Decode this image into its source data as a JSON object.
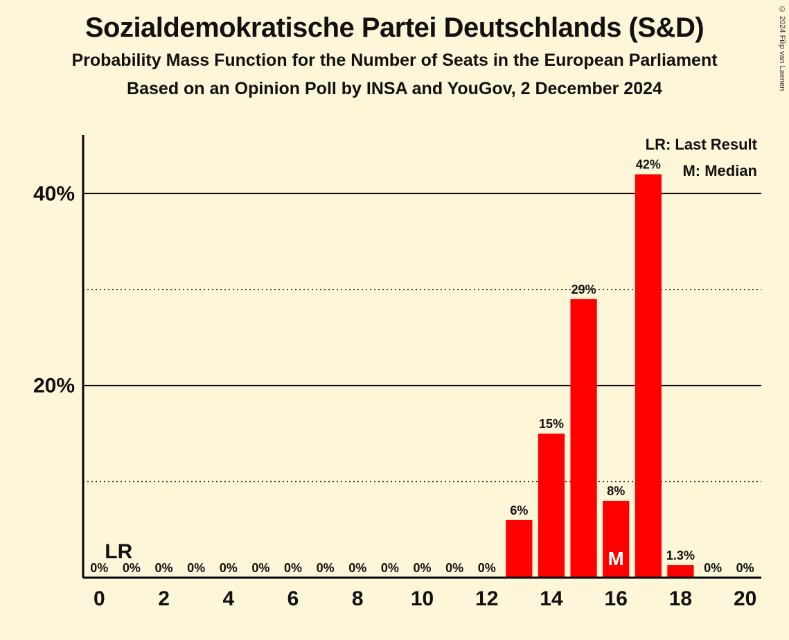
{
  "background_color": "#fdf6d8",
  "title": "Sozialdemokratische Partei Deutschlands (S&D)",
  "subtitle1": "Probability Mass Function for the Number of Seats in the European Parliament",
  "subtitle2": "Based on an Opinion Poll by INSA and YouGov, 2 December 2024",
  "copyright": "© 2024 Filip van Laenen",
  "legend": {
    "lr": "LR: Last Result",
    "m": "M: Median"
  },
  "lr_marker_label": "LR",
  "lr_seat": 0,
  "median_seat": 16,
  "median_marker_char": "M",
  "chart": {
    "type": "bar",
    "bar_color": "#ff0000",
    "axis_color": "#000000",
    "grid_color": "#000000",
    "text_color": "#111111",
    "median_text_color": "#ffffff",
    "ylim": [
      0,
      45
    ],
    "y_major_ticks": [
      20,
      40
    ],
    "y_minor_ticks": [
      10,
      30
    ],
    "y_tick_labels": {
      "20": "20%",
      "40": "40%"
    },
    "x_range": [
      0,
      20
    ],
    "x_tick_step": 2,
    "bar_width_ratio": 0.82,
    "data": [
      {
        "seat": 0,
        "value": 0,
        "label": "0%"
      },
      {
        "seat": 1,
        "value": 0,
        "label": "0%"
      },
      {
        "seat": 2,
        "value": 0,
        "label": "0%"
      },
      {
        "seat": 3,
        "value": 0,
        "label": "0%"
      },
      {
        "seat": 4,
        "value": 0,
        "label": "0%"
      },
      {
        "seat": 5,
        "value": 0,
        "label": "0%"
      },
      {
        "seat": 6,
        "value": 0,
        "label": "0%"
      },
      {
        "seat": 7,
        "value": 0,
        "label": "0%"
      },
      {
        "seat": 8,
        "value": 0,
        "label": "0%"
      },
      {
        "seat": 9,
        "value": 0,
        "label": "0%"
      },
      {
        "seat": 10,
        "value": 0,
        "label": "0%"
      },
      {
        "seat": 11,
        "value": 0,
        "label": "0%"
      },
      {
        "seat": 12,
        "value": 0,
        "label": "0%"
      },
      {
        "seat": 13,
        "value": 6,
        "label": "6%"
      },
      {
        "seat": 14,
        "value": 15,
        "label": "15%"
      },
      {
        "seat": 15,
        "value": 29,
        "label": "29%"
      },
      {
        "seat": 16,
        "value": 8,
        "label": "8%"
      },
      {
        "seat": 17,
        "value": 42,
        "label": "42%"
      },
      {
        "seat": 18,
        "value": 1.3,
        "label": "1.3%"
      },
      {
        "seat": 19,
        "value": 0,
        "label": "0%"
      },
      {
        "seat": 20,
        "value": 0,
        "label": "0%"
      }
    ]
  },
  "typography": {
    "title_fontsize": 40,
    "subtitle_fontsize": 25,
    "axis_label_fontsize": 30,
    "bar_label_fontsize": 18,
    "legend_fontsize": 22,
    "font_family": "Segoe UI, Helvetica Neue, Arial, sans-serif",
    "font_weight": 700
  }
}
